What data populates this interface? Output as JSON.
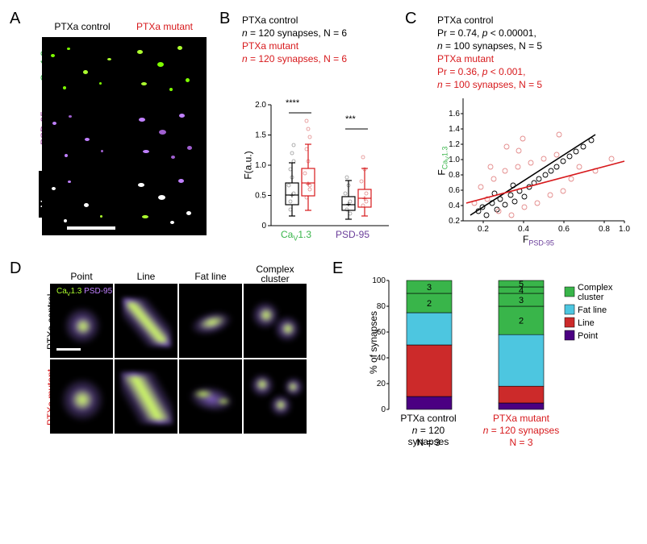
{
  "panelLabels": {
    "A": "A",
    "B": "B",
    "C": "C",
    "D": "D",
    "E": "E"
  },
  "colors": {
    "control": "#000000",
    "mutant": "#d7191c",
    "green": "#39b54a",
    "magenta": "#a64ca6",
    "purple": "#6a3d9a",
    "cyan": "#4dc6e0",
    "red": "#cc2a2a",
    "darkpurple": "#4b0082"
  },
  "panelA": {
    "col1": "PTXa control",
    "col2": "PTXa mutant",
    "row1_a": "Ca",
    "row1_b": "1.3",
    "row2": "PSD-95",
    "row3": "Merge"
  },
  "panelB": {
    "line1": "PTXa control",
    "line2a": "n",
    "line2b": " = 120 synapses, N = 6",
    "line3": "PTXa mutant",
    "line4a": "n",
    "line4b": " = 120 synapses, N = 6",
    "ylabel": "F(a.u.)",
    "xlab1a": "Ca",
    "xlab1b": "1.3",
    "xlab2": "PSD-95",
    "sig1": "****",
    "sig2": "***",
    "yticks": [
      "0",
      "0.5",
      "1.0",
      "1.5",
      "2.0"
    ],
    "box": {
      "cav_ctrl": {
        "q1": 0.35,
        "med": 0.5,
        "q3": 0.7,
        "lo": 0.15,
        "hi": 1.05
      },
      "cav_mut": {
        "q1": 0.5,
        "med": 0.7,
        "q3": 0.95,
        "lo": 0.25,
        "hi": 1.35
      },
      "psd_ctrl": {
        "q1": 0.25,
        "med": 0.35,
        "q3": 0.48,
        "lo": 0.1,
        "hi": 0.75
      },
      "psd_mut": {
        "q1": 0.3,
        "med": 0.45,
        "q3": 0.6,
        "lo": 0.15,
        "hi": 0.95
      }
    }
  },
  "panelC": {
    "l1": "PTXa control",
    "l2a": "Pr = 0.74, ",
    "l2b": "p",
    "l2c": " < 0.00001,",
    "l3a": "n",
    "l3b": " = 100 synapses, N = 5",
    "l4": "PTXa mutant",
    "l5a": "Pr = 0.36, ",
    "l5b": "p",
    "l5c": " < 0.001,",
    "l6a": "n",
    "l6b": " = 100 synapses, N = 5",
    "ylab_a": "F",
    "ylab_b": "Ca",
    "ylab_c": "1.3",
    "xlab_a": "F",
    "xlab_b": "PSD-95",
    "yticks": [
      "0.2",
      "0.4",
      "0.6",
      "0.8",
      "1.0",
      "1.2",
      "1.4",
      "1.6"
    ],
    "xticks": [
      "0.2",
      "0.4",
      "0.6",
      "0.8",
      "1.0"
    ]
  },
  "panelD": {
    "col1": "Point",
    "col2": "Line",
    "col3": "Fat line",
    "col4a": "Complex",
    "col4b": "cluster",
    "row1": "PTXa control",
    "row2": "PTXa mutant",
    "legend_a": "Ca",
    "legend_b": "1.3",
    "legend_c": "PSD-95"
  },
  "panelE": {
    "ylabel": "% of synapses",
    "yticks": [
      "0",
      "20",
      "40",
      "60",
      "80",
      "100"
    ],
    "x1": "PTXa control",
    "x2": "PTXa mutant",
    "s1a": "n",
    "s1b": " = 120 synapses",
    "s2a": "n",
    "s2b": " = 120 synapses",
    "n1": "N = 3",
    "n2": "N = 3",
    "legend": [
      "Complex cluster",
      "Fat line",
      "Line",
      "Point"
    ],
    "legendColors": [
      "#39b54a",
      "#4dc6e0",
      "#cc2a2a",
      "#4b0082"
    ],
    "bars": {
      "control": {
        "segments": [
          {
            "label": "Point",
            "pct": 10,
            "color": "#4b0082"
          },
          {
            "label": "Line",
            "pct": 40,
            "color": "#cc2a2a"
          },
          {
            "label": "Fat line",
            "pct": 25,
            "color": "#4dc6e0"
          },
          {
            "label": "Complex2",
            "pct": 15,
            "color": "#39b54a",
            "text": "2"
          },
          {
            "label": "Complex3",
            "pct": 10,
            "color": "#39b54a",
            "text": "3"
          }
        ]
      },
      "mutant": {
        "segments": [
          {
            "label": "Point",
            "pct": 5,
            "color": "#4b0082"
          },
          {
            "label": "Line",
            "pct": 13,
            "color": "#cc2a2a"
          },
          {
            "label": "Fat line",
            "pct": 40,
            "color": "#4dc6e0"
          },
          {
            "label": "Complex2",
            "pct": 22,
            "color": "#39b54a",
            "text": "2"
          },
          {
            "label": "Complex3",
            "pct": 10,
            "color": "#39b54a",
            "text": "3"
          },
          {
            "label": "Complex4",
            "pct": 5,
            "color": "#39b54a",
            "text": "4"
          },
          {
            "label": "Complex5",
            "pct": 5,
            "color": "#39b54a",
            "text": "5"
          }
        ]
      }
    }
  }
}
